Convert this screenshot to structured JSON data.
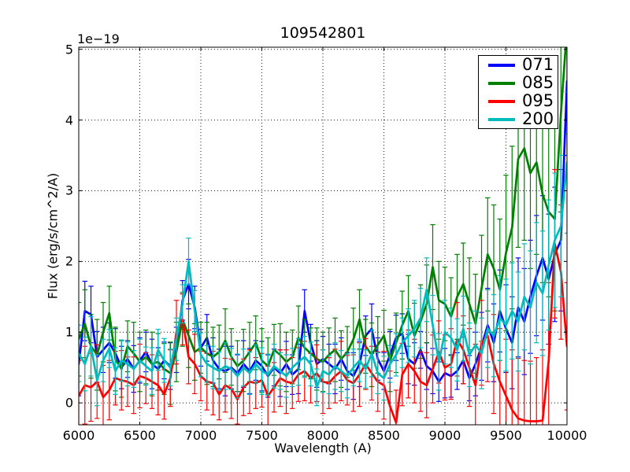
{
  "figure": {
    "title": "109542801",
    "xlabel": "Wavelength (A)",
    "ylabel": "Flux (erg/s/cm^2/A)",
    "offset_text": "1e−19",
    "background": "#ffffff",
    "frame_color": "#000000",
    "grid_color": "#000000"
  },
  "chart_data": {
    "type": "line",
    "title": "109542801",
    "xlabel": "Wavelength (A)",
    "ylabel": "Flux (erg/s/cm^2/A)",
    "y_scale_factor": "1e-19",
    "xlim": [
      6000,
      10000
    ],
    "ylim": [
      -0.31,
      5.03
    ],
    "xticks": [
      6000,
      6500,
      7000,
      7500,
      8000,
      8500,
      9000,
      9500,
      10000
    ],
    "yticks": [
      0,
      1,
      2,
      3,
      4,
      5
    ],
    "grid": "dotted",
    "error_bars": true,
    "legend_position": "upper right",
    "x": [
      6000,
      6050,
      6100,
      6150,
      6200,
      6250,
      6300,
      6350,
      6400,
      6450,
      6500,
      6550,
      6600,
      6650,
      6700,
      6750,
      6800,
      6850,
      6900,
      6950,
      7000,
      7050,
      7100,
      7150,
      7200,
      7250,
      7300,
      7350,
      7400,
      7450,
      7500,
      7550,
      7600,
      7650,
      7700,
      7750,
      7800,
      7850,
      7900,
      7950,
      8000,
      8050,
      8100,
      8150,
      8200,
      8250,
      8300,
      8350,
      8400,
      8450,
      8500,
      8550,
      8600,
      8650,
      8700,
      8750,
      8800,
      8850,
      8900,
      8950,
      9000,
      9050,
      9100,
      9150,
      9200,
      9250,
      9300,
      9350,
      9400,
      9450,
      9500,
      9550,
      9600,
      9650,
      9700,
      9750,
      9800,
      9850,
      9900,
      9950,
      10000
    ],
    "series": [
      {
        "name": "071",
        "color": "#0000ff",
        "values": [
          0.55,
          1.3,
          1.25,
          0.65,
          0.75,
          0.85,
          0.7,
          0.5,
          0.62,
          0.48,
          0.6,
          0.72,
          0.55,
          0.48,
          0.6,
          0.52,
          0.75,
          1.45,
          1.68,
          1.35,
          0.78,
          0.92,
          0.6,
          0.48,
          0.45,
          0.5,
          0.42,
          0.55,
          0.45,
          0.6,
          0.52,
          0.38,
          0.5,
          0.42,
          0.55,
          0.4,
          0.48,
          1.3,
          0.85,
          0.55,
          0.62,
          0.55,
          0.48,
          0.62,
          0.45,
          0.38,
          0.55,
          0.95,
          1.05,
          0.62,
          0.45,
          0.68,
          0.92,
          0.98,
          0.62,
          0.55,
          0.75,
          0.52,
          0.45,
          0.3,
          0.42,
          0.38,
          0.45,
          0.6,
          0.35,
          0.55,
          0.8,
          1.1,
          0.85,
          1.3,
          1.05,
          0.85,
          1.35,
          1.15,
          1.5,
          1.8,
          2.05,
          1.75,
          2.1,
          2.3,
          4.55
        ],
        "yerr": [
          0.45,
          0.42,
          0.4,
          0.36,
          0.32,
          0.28,
          0.35,
          0.3,
          0.26,
          0.33,
          0.32,
          0.28,
          0.35,
          0.3,
          0.26,
          0.33,
          0.32,
          0.28,
          0.35,
          0.3,
          0.26,
          0.33,
          0.32,
          0.28,
          0.35,
          0.3,
          0.26,
          0.33,
          0.32,
          0.28,
          0.35,
          0.3,
          0.26,
          0.33,
          0.32,
          0.28,
          0.35,
          0.3,
          0.26,
          0.33,
          0.32,
          0.28,
          0.35,
          0.3,
          0.26,
          0.33,
          0.32,
          0.28,
          0.35,
          0.3,
          0.26,
          0.33,
          0.32,
          0.28,
          0.35,
          0.3,
          0.26,
          0.33,
          0.32,
          0.28,
          0.35,
          0.3,
          0.26,
          0.33,
          0.32,
          0.45,
          0.48,
          0.52,
          0.55,
          0.58,
          0.62,
          0.65,
          0.7,
          0.75,
          0.8,
          0.85,
          0.88,
          0.92,
          0.95,
          1.0,
          1.05
        ]
      },
      {
        "name": "085",
        "color": "#008000",
        "values": [
          0.9,
          1.12,
          0.8,
          0.68,
          1.0,
          1.27,
          0.62,
          0.48,
          0.8,
          0.7,
          0.58,
          0.65,
          0.55,
          0.58,
          0.48,
          0.42,
          0.72,
          1.18,
          0.95,
          0.72,
          0.78,
          0.7,
          0.65,
          0.72,
          0.88,
          0.65,
          0.52,
          0.6,
          0.72,
          0.85,
          0.6,
          0.52,
          0.75,
          0.68,
          0.58,
          0.65,
          0.92,
          0.78,
          0.7,
          0.62,
          0.58,
          0.68,
          0.75,
          0.62,
          0.72,
          0.9,
          1.18,
          0.8,
          0.68,
          0.82,
          0.95,
          0.6,
          0.85,
          1.1,
          1.3,
          0.95,
          1.15,
          1.4,
          1.92,
          1.45,
          1.4,
          1.22,
          1.5,
          1.68,
          1.4,
          1.12,
          1.62,
          2.1,
          1.9,
          1.6,
          2.12,
          2.48,
          3.45,
          3.6,
          3.25,
          3.4,
          2.95,
          2.7,
          2.6,
          4.1,
          5.3
        ],
        "yerr": [
          0.52,
          0.48,
          0.45,
          0.5,
          0.42,
          0.38,
          0.45,
          0.4,
          0.36,
          0.44,
          0.42,
          0.38,
          0.45,
          0.4,
          0.36,
          0.44,
          0.42,
          0.38,
          0.45,
          0.4,
          0.36,
          0.44,
          0.42,
          0.38,
          0.45,
          0.4,
          0.36,
          0.44,
          0.42,
          0.38,
          0.45,
          0.4,
          0.36,
          0.44,
          0.42,
          0.38,
          0.45,
          0.4,
          0.36,
          0.44,
          0.42,
          0.38,
          0.45,
          0.4,
          0.36,
          0.44,
          0.42,
          0.38,
          0.45,
          0.4,
          0.36,
          0.44,
          0.42,
          0.48,
          0.5,
          0.46,
          0.52,
          0.55,
          0.6,
          0.55,
          0.52,
          0.55,
          0.6,
          0.58,
          0.65,
          0.7,
          0.75,
          0.8,
          0.9,
          1.0,
          1.1,
          1.15,
          1.25,
          1.3,
          1.35,
          1.3,
          1.25,
          1.2,
          1.3,
          1.4,
          1.5
        ]
      },
      {
        "name": "095",
        "color": "#ff0000",
        "values": [
          0.1,
          0.25,
          0.22,
          0.3,
          0.08,
          0.18,
          0.35,
          0.32,
          0.3,
          0.25,
          0.38,
          0.35,
          0.3,
          0.25,
          0.12,
          0.35,
          1.0,
          1.18,
          0.65,
          0.55,
          0.38,
          0.3,
          0.28,
          0.12,
          0.25,
          0.2,
          0.05,
          0.22,
          0.3,
          0.28,
          0.32,
          0.1,
          0.22,
          0.35,
          0.3,
          0.28,
          0.4,
          0.45,
          0.35,
          0.42,
          0.3,
          0.28,
          0.38,
          0.45,
          0.32,
          0.28,
          0.4,
          0.55,
          0.42,
          0.3,
          0.25,
          -0.05,
          -0.28,
          0.4,
          0.55,
          0.45,
          0.3,
          0.25,
          0.48,
          0.72,
          0.5,
          0.55,
          0.9,
          0.75,
          0.5,
          0.25,
          0.85,
          0.95,
          0.55,
          0.3,
          0.1,
          -0.1,
          -0.22,
          -0.25,
          -0.26,
          -0.26,
          -0.25,
          0.6,
          2.25,
          1.85,
          0.8
        ],
        "yerr": [
          0.5,
          0.55,
          0.48,
          0.52,
          0.45,
          0.42,
          0.38,
          0.42,
          0.35,
          0.4,
          0.45,
          0.36,
          0.38,
          0.42,
          0.35,
          0.4,
          0.45,
          0.36,
          0.38,
          0.42,
          0.35,
          0.4,
          0.45,
          0.36,
          0.38,
          0.42,
          0.35,
          0.4,
          0.45,
          0.36,
          0.38,
          0.42,
          0.35,
          0.4,
          0.45,
          0.36,
          0.38,
          0.42,
          0.35,
          0.4,
          0.45,
          0.36,
          0.38,
          0.42,
          0.35,
          0.4,
          0.45,
          0.36,
          0.38,
          0.42,
          0.48,
          0.5,
          0.46,
          0.44,
          0.48,
          0.45,
          0.42,
          0.46,
          0.48,
          0.44,
          0.46,
          0.5,
          0.52,
          0.48,
          0.55,
          0.58,
          0.6,
          0.65,
          0.7,
          0.75,
          0.8,
          0.85,
          0.85,
          0.85,
          0.85,
          0.9,
          1.0,
          1.1,
          1.05,
          0.95,
          0.9
        ]
      },
      {
        "name": "200",
        "color": "#00bcbc",
        "values": [
          0.7,
          0.55,
          0.8,
          0.32,
          0.6,
          0.77,
          0.45,
          0.6,
          0.55,
          0.48,
          0.6,
          0.52,
          0.45,
          0.75,
          0.6,
          0.5,
          0.9,
          1.4,
          2.0,
          1.3,
          0.68,
          0.55,
          0.5,
          0.45,
          0.52,
          0.48,
          0.38,
          0.5,
          0.42,
          0.55,
          0.45,
          0.4,
          0.52,
          0.45,
          0.38,
          0.5,
          0.58,
          0.65,
          0.55,
          0.22,
          0.45,
          0.4,
          0.52,
          0.45,
          0.38,
          0.5,
          0.6,
          0.48,
          0.7,
          0.42,
          0.35,
          0.55,
          0.68,
          0.85,
          0.95,
          1.05,
          1.2,
          1.6,
          1.1,
          0.58,
          1.0,
          0.92,
          0.75,
          1.05,
          0.68,
          0.82,
          0.7,
          1.05,
          0.95,
          1.2,
          1.1,
          1.3,
          1.15,
          1.5,
          1.35,
          1.7,
          1.55,
          1.95,
          2.3,
          2.5,
          3.4
        ],
        "yerr": [
          0.4,
          0.38,
          0.42,
          0.36,
          0.3,
          0.27,
          0.33,
          0.29,
          0.31,
          0.26,
          0.3,
          0.27,
          0.33,
          0.29,
          0.31,
          0.26,
          0.3,
          0.27,
          0.33,
          0.29,
          0.31,
          0.26,
          0.3,
          0.27,
          0.33,
          0.29,
          0.31,
          0.26,
          0.3,
          0.27,
          0.33,
          0.29,
          0.31,
          0.26,
          0.3,
          0.27,
          0.33,
          0.29,
          0.31,
          0.26,
          0.3,
          0.27,
          0.33,
          0.29,
          0.31,
          0.26,
          0.3,
          0.27,
          0.33,
          0.29,
          0.31,
          0.26,
          0.3,
          0.35,
          0.38,
          0.4,
          0.42,
          0.45,
          0.42,
          0.4,
          0.45,
          0.42,
          0.44,
          0.46,
          0.45,
          0.48,
          0.5,
          0.55,
          0.58,
          0.6,
          0.65,
          0.68,
          0.7,
          0.75,
          0.8,
          0.85,
          0.88,
          0.92,
          0.95,
          1.0,
          1.0
        ]
      }
    ]
  }
}
